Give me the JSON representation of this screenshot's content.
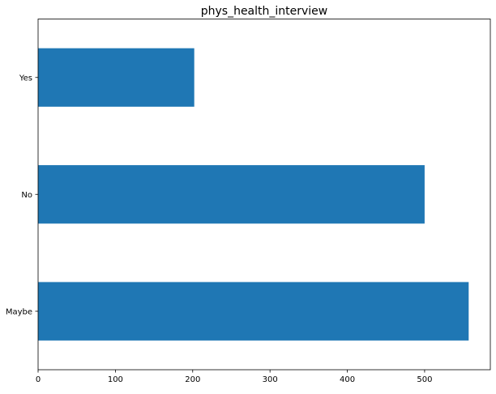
{
  "chart_data": {
    "type": "bar",
    "orientation": "horizontal",
    "title": "phys_health_interview",
    "xlabel": "",
    "ylabel": "",
    "categories": [
      "Maybe",
      "No",
      "Yes"
    ],
    "values": [
      557,
      500,
      202
    ],
    "xlim": [
      0,
      585
    ],
    "xticks": [
      0,
      100,
      200,
      300,
      400,
      500
    ],
    "grid": false,
    "legend": "none",
    "bar_color": "#1f77b4"
  }
}
